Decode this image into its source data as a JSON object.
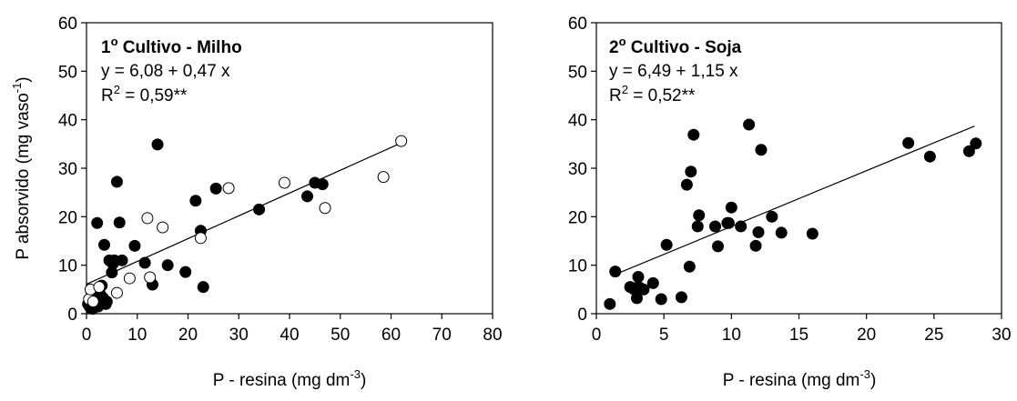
{
  "chart_data": [
    {
      "type": "scatter",
      "title": "1º Cultivo - Milho",
      "equation": "y = 6,08 + 0,47 x",
      "r2_prefix": "R",
      "r2_sup": "2",
      "r2_suffix": " = 0,59**",
      "ylabel_main": "P absorvido (mg vaso",
      "ylabel_sup": "-1",
      "ylabel_close": ")",
      "xlabel_main": "P - resina (mg dm",
      "xlabel_sup": "-3",
      "xlabel_close": ")",
      "xlim": [
        0,
        80
      ],
      "ylim": [
        0,
        60
      ],
      "xticks": [
        "0",
        "10",
        "20",
        "30",
        "40",
        "50",
        "60",
        "70",
        "80"
      ],
      "yticks": [
        "0",
        "10",
        "20",
        "30",
        "40",
        "50",
        "60"
      ],
      "grid": false,
      "series": [
        {
          "marker": "filled",
          "x": [
            0.3,
            0.6,
            0.8,
            1.0,
            1.2,
            1.5,
            1.7,
            2.0,
            2.1,
            2.3,
            2.5,
            2.7,
            3.0,
            3.2,
            3.5,
            3.8,
            4.0,
            4.5,
            5.0,
            5.2,
            5.5,
            6.0,
            6.5,
            7.0,
            9.5,
            11.5,
            13.0,
            14.0,
            16.0,
            19.5,
            21.5,
            22.5,
            23.0,
            25.5,
            34.0,
            43.5,
            45.0,
            46.5
          ],
          "y": [
            2.0,
            1.5,
            1.2,
            1.8,
            1.0,
            2.5,
            3.0,
            2.0,
            18.7,
            1.5,
            2.8,
            4.0,
            5.8,
            3.3,
            14.2,
            2.0,
            2.5,
            11.0,
            8.5,
            10.3,
            11.0,
            27.2,
            18.8,
            11.0,
            14.0,
            10.5,
            6.0,
            34.9,
            10.0,
            8.6,
            23.3,
            17.1,
            5.5,
            25.8,
            21.5,
            24.2,
            27.0,
            26.7
          ]
        },
        {
          "marker": "open",
          "x": [
            0.5,
            0.8,
            1.3,
            2.5,
            6.0,
            8.5,
            12.0,
            12.5,
            15.0,
            22.5,
            28.0,
            39.0,
            47.0,
            58.5,
            62.0
          ],
          "y": [
            3.0,
            5.0,
            2.5,
            5.5,
            4.3,
            7.3,
            19.7,
            7.5,
            17.8,
            15.6,
            25.9,
            27.0,
            21.8,
            28.2,
            35.6
          ]
        }
      ],
      "fit": {
        "intercept": 6.08,
        "slope": 0.47,
        "x_range": [
          0,
          62
        ]
      }
    },
    {
      "type": "scatter",
      "title": "2º Cultivo - Soja",
      "equation": "y = 6,49 + 1,15 x",
      "r2_prefix": "R",
      "r2_sup": "2",
      "r2_suffix": " = 0,52**",
      "xlabel_main": "P - resina (mg dm",
      "xlabel_sup": "-3",
      "xlabel_close": ")",
      "xlim": [
        0,
        30
      ],
      "ylim": [
        0,
        60
      ],
      "xticks": [
        "0",
        "5",
        "10",
        "15",
        "20",
        "25",
        "30"
      ],
      "yticks": [
        "0",
        "10",
        "20",
        "30",
        "40",
        "50",
        "60"
      ],
      "grid": false,
      "series": [
        {
          "marker": "filled",
          "x": [
            1.0,
            1.4,
            2.5,
            2.8,
            3.0,
            3.0,
            3.1,
            3.2,
            3.5,
            4.2,
            4.8,
            5.2,
            6.3,
            6.7,
            6.9,
            7.0,
            7.2,
            7.5,
            7.6,
            8.8,
            9.0,
            9.7,
            9.8,
            10.0,
            10.7,
            11.3,
            11.8,
            12.0,
            12.2,
            13.0,
            13.7,
            16.0,
            23.1,
            24.7,
            27.6,
            28.1
          ],
          "y": [
            2.0,
            8.7,
            5.5,
            5.0,
            3.2,
            5.4,
            7.6,
            5.4,
            5.0,
            6.3,
            3.0,
            14.2,
            3.4,
            26.6,
            9.7,
            29.3,
            36.9,
            18.0,
            20.3,
            18.0,
            13.9,
            18.7,
            18.7,
            21.9,
            18.0,
            39.0,
            14.0,
            16.8,
            33.8,
            20.0,
            16.7,
            16.5,
            35.2,
            32.4,
            33.5,
            35.1
          ]
        }
      ],
      "fit": {
        "intercept": 6.49,
        "slope": 1.15,
        "x_range": [
          1.5,
          28
        ]
      }
    }
  ]
}
